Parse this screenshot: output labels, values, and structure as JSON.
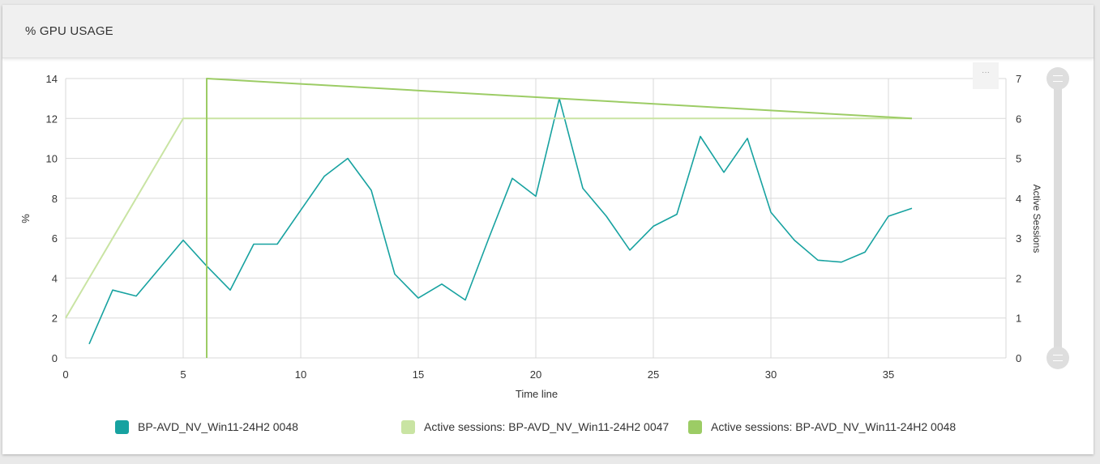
{
  "header": {
    "title": "% GPU USAGE"
  },
  "toolbar": {
    "more_label": "···"
  },
  "colors": {
    "grid": "#d9d9d9",
    "axis_text": "#333333",
    "series_gpu": "#17a2a0",
    "series_sessions_0047": "#c9e4a3",
    "series_sessions_0048": "#9ccc65"
  },
  "chart_data": {
    "type": "line",
    "xlabel": "Time line",
    "ylabel": "%",
    "y2label": "Active Sessions",
    "xlim": [
      0,
      40
    ],
    "ylim": [
      0,
      14
    ],
    "y2lim": [
      0,
      7
    ],
    "xticks": [
      0,
      5,
      10,
      15,
      20,
      25,
      30,
      35
    ],
    "yticks": [
      0,
      2,
      4,
      6,
      8,
      10,
      12,
      14
    ],
    "y2ticks": [
      0,
      1,
      2,
      3,
      4,
      5,
      6,
      7
    ],
    "grid": true,
    "legend_position": "bottom",
    "series": [
      {
        "name": "BP-AVD_NV_Win11-24H2 0048",
        "axis": "left",
        "color": "#17a2a0",
        "points": [
          [
            1,
            0.7
          ],
          [
            2,
            3.4
          ],
          [
            3,
            3.1
          ],
          [
            4,
            4.5
          ],
          [
            5,
            5.9
          ],
          [
            6,
            4.6
          ],
          [
            7,
            3.4
          ],
          [
            8,
            5.7
          ],
          [
            9,
            5.7
          ],
          [
            10,
            7.4
          ],
          [
            11,
            9.1
          ],
          [
            12,
            10.0
          ],
          [
            13,
            8.4
          ],
          [
            14,
            4.2
          ],
          [
            15,
            3.0
          ],
          [
            16,
            3.7
          ],
          [
            17,
            2.9
          ],
          [
            18,
            6.0
          ],
          [
            19,
            9.0
          ],
          [
            20,
            8.1
          ],
          [
            21,
            13.0
          ],
          [
            22,
            8.5
          ],
          [
            23,
            7.1
          ],
          [
            24,
            5.4
          ],
          [
            25,
            6.6
          ],
          [
            26,
            7.2
          ],
          [
            27,
            11.1
          ],
          [
            28,
            9.3
          ],
          [
            29,
            11.0
          ],
          [
            30,
            7.3
          ],
          [
            31,
            5.9
          ],
          [
            32,
            4.9
          ],
          [
            33,
            4.8
          ],
          [
            34,
            5.3
          ],
          [
            35,
            7.1
          ],
          [
            36,
            7.5
          ]
        ]
      },
      {
        "name": "Active sessions: BP-AVD_NV_Win11-24H2 0047",
        "axis": "right",
        "color": "#c9e4a3",
        "points": [
          [
            0,
            1
          ],
          [
            5,
            6
          ],
          [
            36,
            6
          ]
        ]
      },
      {
        "name": "Active sessions: BP-AVD_NV_Win11-24H2 0048",
        "axis": "right",
        "color": "#9ccc65",
        "points": [
          [
            6,
            0
          ],
          [
            6,
            7
          ],
          [
            36,
            6
          ]
        ]
      }
    ]
  }
}
